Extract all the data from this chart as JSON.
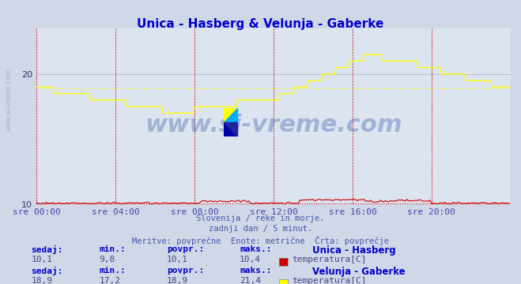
{
  "title": "Unica - Hasberg & Velunja - Gaberke",
  "title_color": "#0000cc",
  "bg_color": "#d0d8e8",
  "plot_bg_color": "#dce4f0",
  "grid_color_major": "#b0b8cc",
  "grid_color_minor": "#cc0000",
  "xlabel_color": "#4444aa",
  "ylabel_range": [
    10,
    22
  ],
  "yticks": [
    10,
    20
  ],
  "xtick_labels": [
    "sre 00:00",
    "sre 04:00",
    "sre 08:00",
    "sre 12:00",
    "sre 16:00",
    "sre 20:00"
  ],
  "xtick_positions": [
    0,
    48,
    96,
    144,
    192,
    240
  ],
  "total_points": 288,
  "watermark": "www.si-vreme.com",
  "watermark_color": "#3355aa",
  "watermark_alpha": 0.35,
  "subtitle_lines": [
    "Slovenija / reke in morje.",
    "zadnji dan / 5 minut.",
    "Meritve: povprečne  Enote: metrične  Črta: povprečje"
  ],
  "subtitle_color": "#4455aa",
  "legend1_label_bold": "Unica - Hasberg",
  "legend1_label": "temperatura[C]",
  "legend1_color": "#cc0000",
  "legend2_label_bold": "Velunja - Gaberke",
  "legend2_label": "temperatura[C]",
  "legend2_color": "#ffff00",
  "stats1": {
    "sedaj": "10,1",
    "min": "9,8",
    "povpr": "10,1",
    "maks": "10,4"
  },
  "stats2": {
    "sedaj": "18,9",
    "min": "17,2",
    "povpr": "18,9",
    "maks": "21,4"
  },
  "avg1": 10.1,
  "avg2": 18.9,
  "line1_color": "#cc0000",
  "line2_color": "#ffff00",
  "avg_line1_color": "#cc0000",
  "avg_line2_color": "#ffff00",
  "watermark_logo_colors": [
    "#ffff00",
    "#00aaff",
    "#0000aa"
  ]
}
